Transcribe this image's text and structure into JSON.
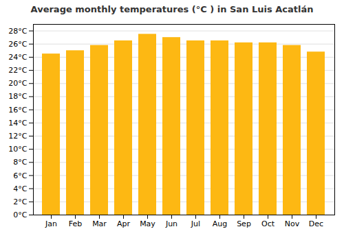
{
  "chart_data": {
    "type": "bar",
    "title": "Average monthly temperatures (°C ) in San Luis Acatlán",
    "categories": [
      "Jan",
      "Feb",
      "Mar",
      "Apr",
      "May",
      "Jun",
      "Jul",
      "Aug",
      "Sep",
      "Oct",
      "Nov",
      "Dec"
    ],
    "values": [
      24.5,
      25.0,
      25.8,
      26.5,
      27.5,
      27.0,
      26.5,
      26.5,
      26.2,
      26.2,
      25.8,
      24.8
    ],
    "color": "#FDB813",
    "ylim": [
      0,
      29
    ],
    "yticks": [
      {
        "value": 0,
        "label": "0°C"
      },
      {
        "value": 2,
        "label": "2°C"
      },
      {
        "value": 4,
        "label": "4°C"
      },
      {
        "value": 6,
        "label": "6°C"
      },
      {
        "value": 8,
        "label": "8°C"
      },
      {
        "value": 10,
        "label": "10°C"
      },
      {
        "value": 12,
        "label": "12°C"
      },
      {
        "value": 14,
        "label": "14°C"
      },
      {
        "value": 16,
        "label": "16°C"
      },
      {
        "value": 18,
        "label": "18°C"
      },
      {
        "value": 20,
        "label": "20°C"
      },
      {
        "value": 22,
        "label": "22°C"
      },
      {
        "value": 24,
        "label": "24°C"
      },
      {
        "value": 26,
        "label": "26°C"
      },
      {
        "value": 28,
        "label": "28°C"
      }
    ],
    "grid": true
  }
}
